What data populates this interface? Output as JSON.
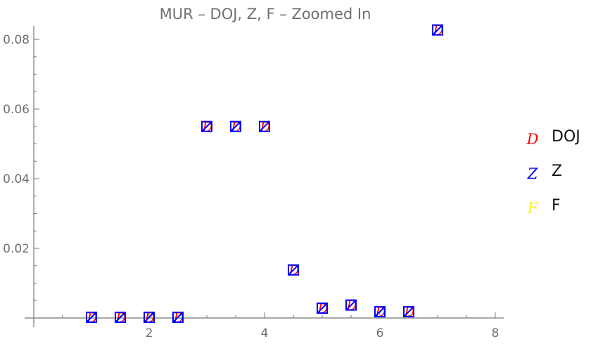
{
  "chart_data": {
    "type": "scatter",
    "title": "MUR – DOJ, Z, F – Zoomed In",
    "xlabel": "",
    "ylabel": "",
    "xlim": [
      0,
      8.1
    ],
    "ylim": [
      0,
      0.084
    ],
    "x_ticks": [
      2,
      4,
      6,
      8
    ],
    "y_ticks": [
      0.02,
      0.04,
      0.06,
      0.08
    ],
    "y_tick_labels": [
      "0.02",
      "0.04",
      "0.06",
      "0.08"
    ],
    "x_minor_step": 0.5,
    "y_minor_step": 0.005,
    "legend_position": "right",
    "series": [
      {
        "name": "DOJ",
        "marker": "D",
        "color": "#ff0000",
        "x": [
          1,
          1.5,
          2,
          2.5,
          3,
          3.5,
          4,
          4.5,
          5,
          5.5,
          6,
          6.5,
          7
        ],
        "y": [
          0.0002,
          0.0002,
          0.0002,
          0.0002,
          0.055,
          0.055,
          0.055,
          0.0138,
          0.0028,
          0.0037,
          0.0018,
          0.0018,
          0.0827
        ]
      },
      {
        "name": "Z",
        "marker": "Z",
        "color": "#0000ff",
        "x": [
          1,
          1.5,
          2,
          2.5,
          3,
          3.5,
          4,
          4.5,
          5,
          5.5,
          6,
          6.5,
          7
        ],
        "y": [
          0.0002,
          0.0002,
          0.0002,
          0.0002,
          0.055,
          0.055,
          0.055,
          0.0138,
          0.0028,
          0.0037,
          0.0018,
          0.0018,
          0.0827
        ]
      },
      {
        "name": "F",
        "marker": "F",
        "color": "#ffee00",
        "x": [],
        "y": []
      }
    ]
  }
}
